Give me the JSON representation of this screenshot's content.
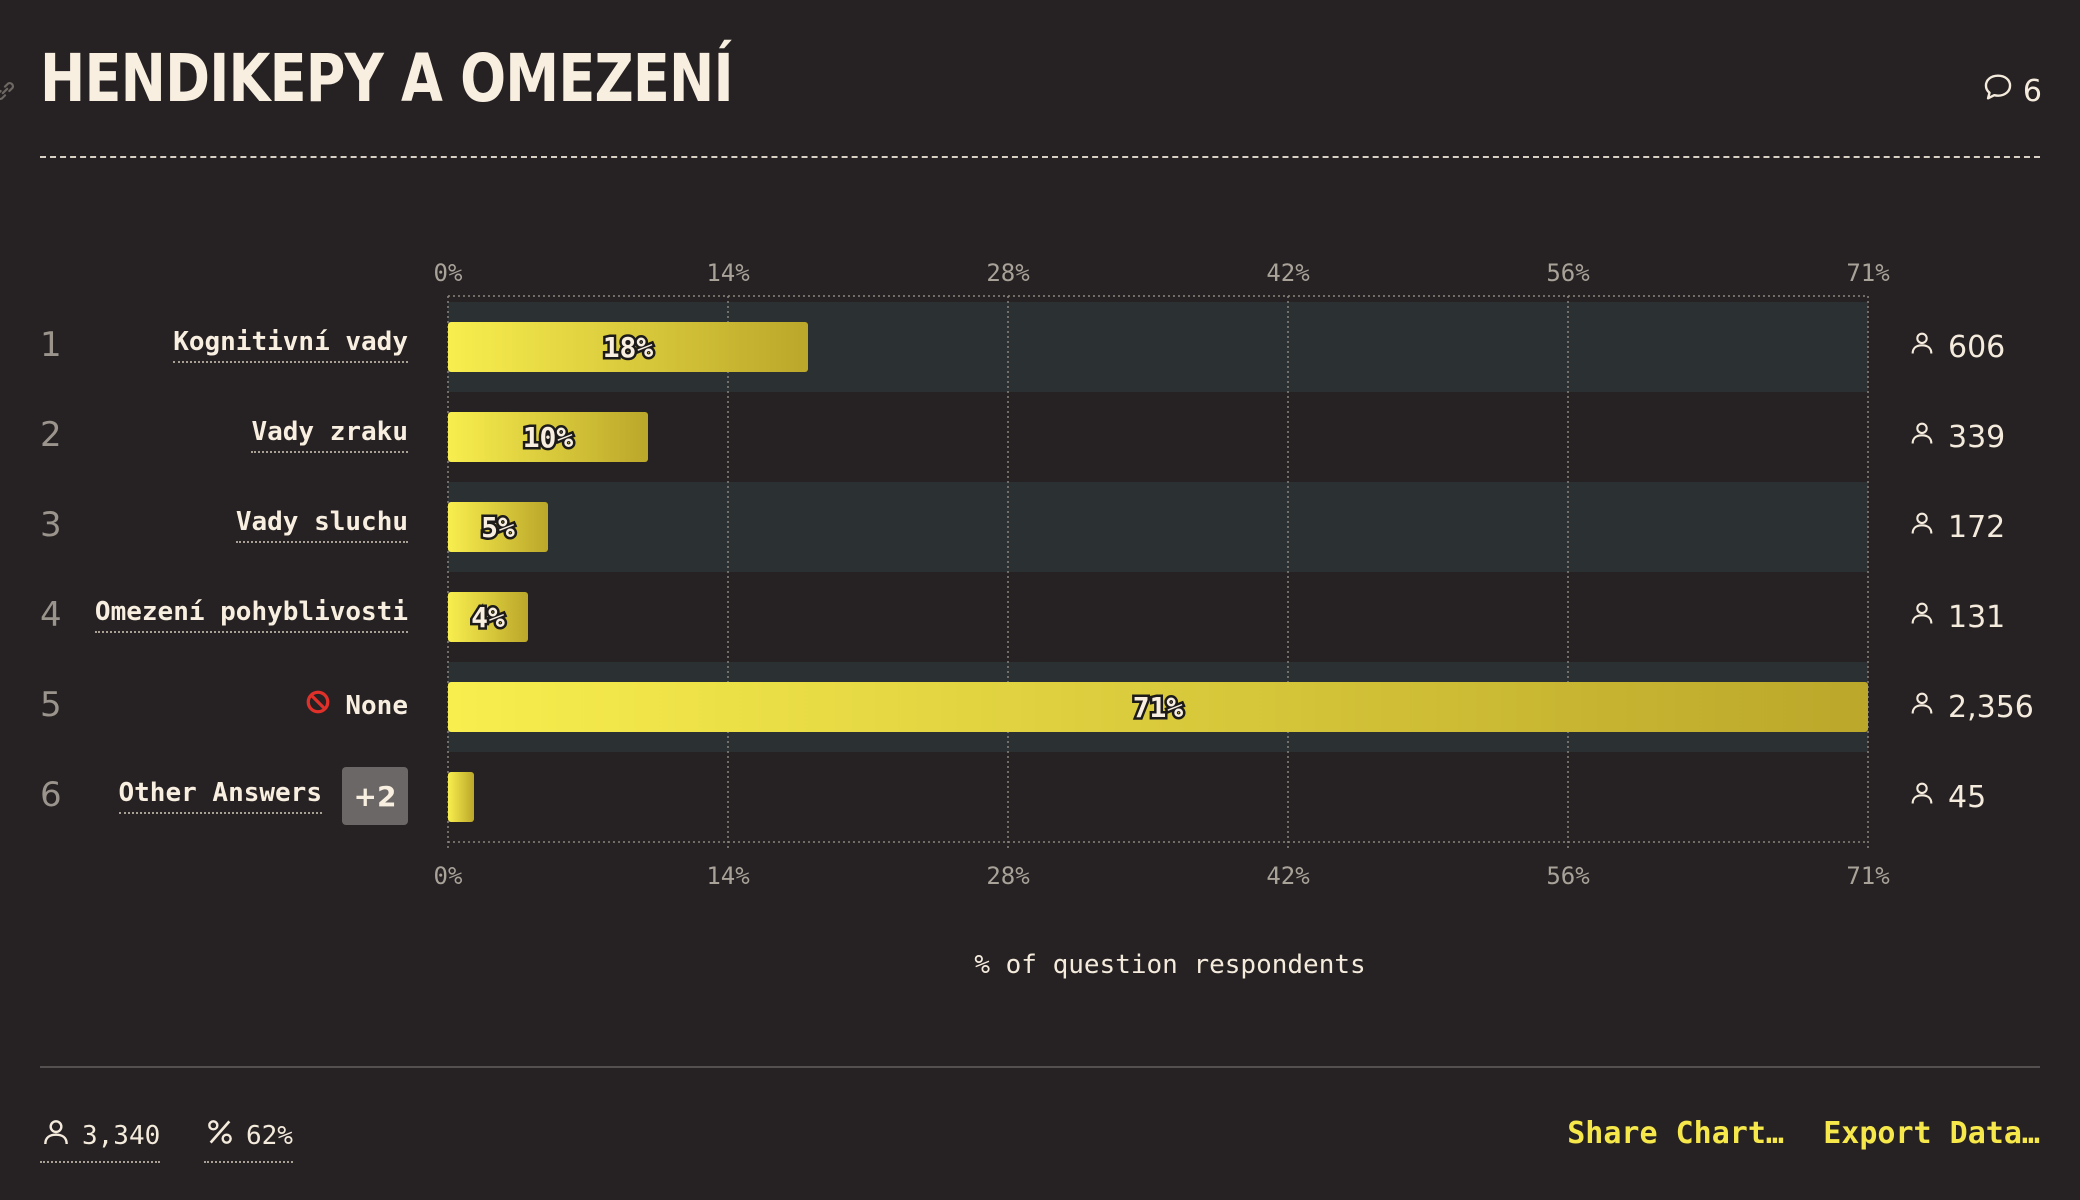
{
  "header": {
    "title": "HENDIKEPY A OMEZENÍ",
    "comments_count": "6"
  },
  "chart_data": {
    "type": "bar",
    "orientation": "horizontal",
    "categories": [
      "Kognitivní vady",
      "Vady zraku",
      "Vady sluchu",
      "Omezení pohyblivosti",
      "None",
      "Other Answers"
    ],
    "values": [
      18,
      10,
      5,
      4,
      71,
      1.3
    ],
    "value_labels": [
      "18%",
      "10%",
      "5%",
      "4%",
      "71%",
      ""
    ],
    "counts": [
      "606",
      "339",
      "172",
      "131",
      "2,356",
      "45"
    ],
    "ranks": [
      "1",
      "2",
      "3",
      "4",
      "5",
      "6"
    ],
    "xlim": [
      0,
      71
    ],
    "ticks": [
      0,
      14,
      28,
      42,
      56,
      71
    ],
    "tick_labels": [
      "0%",
      "14%",
      "28%",
      "42%",
      "56%",
      "71%"
    ],
    "xlabel": "% of question respondents",
    "grid": true,
    "colors": {
      "bar_start": "#f8ee4e",
      "bar_end": "#bba72a",
      "row_band": "#2b3032",
      "grid": "#8b857e"
    }
  },
  "other_answers_badge": "+2",
  "footer": {
    "respondents": "3,340",
    "percent": "62%",
    "share_label": "Share Chart…",
    "export_label": "Export Data…"
  }
}
